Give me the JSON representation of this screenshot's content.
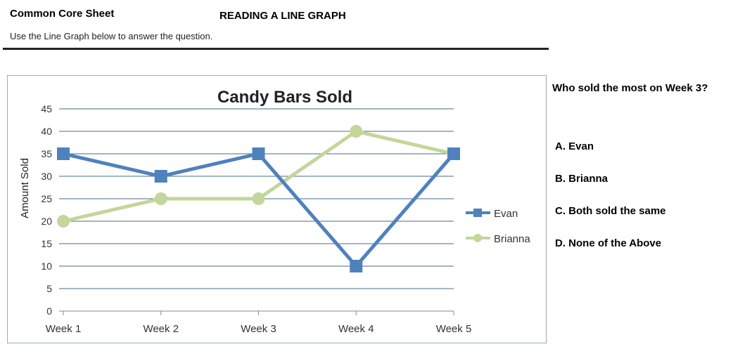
{
  "header": {
    "left": "Common Core Sheet",
    "title": "READING A LINE GRAPH",
    "instructions": "Use the Line Graph below to answer the question."
  },
  "question": {
    "text": "Who sold the most on Week 3?",
    "options": [
      "A.  Evan",
      "B.  Brianna",
      "C.  Both sold the same",
      "D.  None of the Above"
    ]
  },
  "colors": {
    "evan": "#4f81bd",
    "brianna": "#c3d69b",
    "grid": "#4a6a8a"
  },
  "chart_data": {
    "type": "line",
    "title": "Candy Bars Sold",
    "xlabel": "",
    "ylabel": "Amount Sold",
    "categories": [
      "Week 1",
      "Week 2",
      "Week 3",
      "Week 4",
      "Week 5"
    ],
    "ylim": [
      0,
      45
    ],
    "yticks": [
      0,
      5,
      10,
      15,
      20,
      25,
      30,
      35,
      40,
      45
    ],
    "grid": true,
    "legend": "right",
    "series": [
      {
        "name": "Evan",
        "marker": "square",
        "values": [
          35,
          30,
          35,
          10,
          35
        ]
      },
      {
        "name": "Brianna",
        "marker": "circle",
        "values": [
          20,
          25,
          25,
          40,
          35
        ]
      }
    ]
  }
}
